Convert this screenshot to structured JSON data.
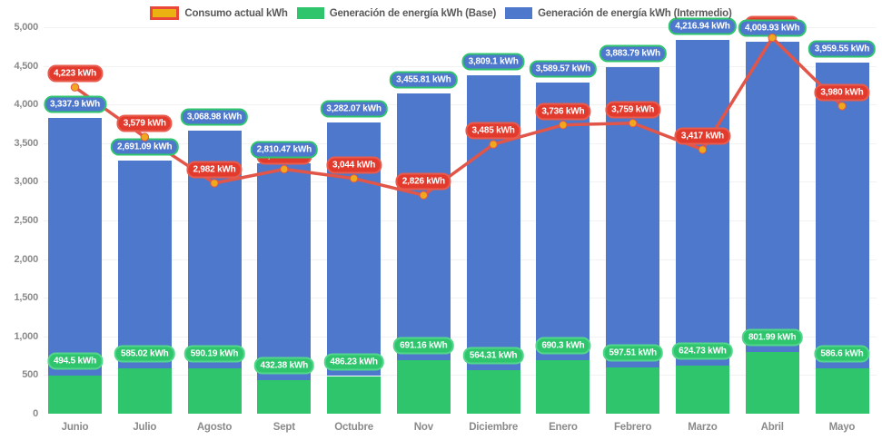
{
  "legend": {
    "items": [
      {
        "id": "consumo",
        "label": "Consumo actual kWh"
      },
      {
        "id": "base",
        "label": "Generación de energía kWh (Base)"
      },
      {
        "id": "intermedio",
        "label": "Generación de energía kWh (Intermedio)"
      }
    ]
  },
  "chart_data": {
    "type": "bar",
    "stacked": true,
    "legend_position": "top",
    "grid": "faint-horizontal",
    "ylim": [
      0,
      5000
    ],
    "y_tick_step": 500,
    "y_ticks": [
      {
        "value": 0,
        "label": "0"
      },
      {
        "value": 500,
        "label": "500"
      },
      {
        "value": 1000,
        "label": "1,000"
      },
      {
        "value": 1500,
        "label": "1,500"
      },
      {
        "value": 2000,
        "label": "2,000"
      },
      {
        "value": 2500,
        "label": "2,500"
      },
      {
        "value": 3000,
        "label": "3,000"
      },
      {
        "value": 3500,
        "label": "3,500"
      },
      {
        "value": 4000,
        "label": "4,000"
      },
      {
        "value": 4500,
        "label": "4,500"
      },
      {
        "value": 5000,
        "label": "5,000"
      }
    ],
    "categories": [
      "Junio",
      "Julio",
      "Agosto",
      "Sept",
      "Octubre",
      "Nov",
      "Diciembre",
      "Enero",
      "Febrero",
      "Marzo",
      "Abril",
      "Mayo"
    ],
    "series": [
      {
        "name": "Generación de energía kWh (Base)",
        "id": "base",
        "type": "bar",
        "color": "#2fc56d",
        "values": [
          494.5,
          585.02,
          590.19,
          432.38,
          486.23,
          691.16,
          564.31,
          690.3,
          597.51,
          624.73,
          801.99,
          586.6
        ],
        "labels": [
          "494.5 kWh",
          "585.02 kWh",
          "590.19 kWh",
          "432.38 kWh",
          "486.23 kWh",
          "691.16 kWh",
          "564.31 kWh",
          "690.3 kWh",
          "597.51 kWh",
          "624.73 kWh",
          "801.99 kWh",
          "586.6 kWh"
        ]
      },
      {
        "name": "Generación de energía kWh (Intermedio)",
        "id": "intermedio",
        "type": "bar",
        "color": "#4d78cc",
        "values": [
          3337.9,
          2691.09,
          3068.98,
          2810.47,
          3282.07,
          3455.81,
          3809.1,
          3589.57,
          3883.79,
          4216.94,
          4009.93,
          3959.55
        ],
        "labels": [
          "3,337.9 kWh",
          "2,691.09 kWh",
          "3,068.98 kWh",
          "2,810.47 kWh",
          "3,282.07 kWh",
          "3,455.81 kWh",
          "3,809.1 kWh",
          "3,589.57 kWh",
          "3,883.79 kWh",
          "4,216.94 kWh",
          "4,009.93 kWh",
          "3,959.55 kWh"
        ]
      },
      {
        "name": "Consumo actual kWh",
        "id": "consumo",
        "type": "line",
        "color": "#e25549",
        "point_color": "#f0a81c",
        "values": [
          4223,
          3579,
          2982,
          3163,
          3044,
          2826,
          3485,
          3736,
          3759,
          3417,
          4864,
          3980
        ],
        "labels": [
          "4,223 kWh",
          "3,579 kWh",
          "2,982 kWh",
          "3,163 kWh",
          "3,044 kWh",
          "2,826 kWh",
          "3,485 kWh",
          "3,736 kWh",
          "3,759 kWh",
          "3,417 kWh",
          "4,864 kWh",
          "3,980 kWh"
        ]
      }
    ],
    "colors": {
      "base_bar": "#2fc56d",
      "intermedio_bar": "#4d78cc",
      "consumo_line": "#e25549",
      "consumo_point": "#f0a81c",
      "legend_swatch_consumo_fill": "#eab311",
      "legend_swatch_consumo_border": "#e8473a",
      "axis_text": "#8a8a8a",
      "legend_text": "#595959"
    }
  }
}
